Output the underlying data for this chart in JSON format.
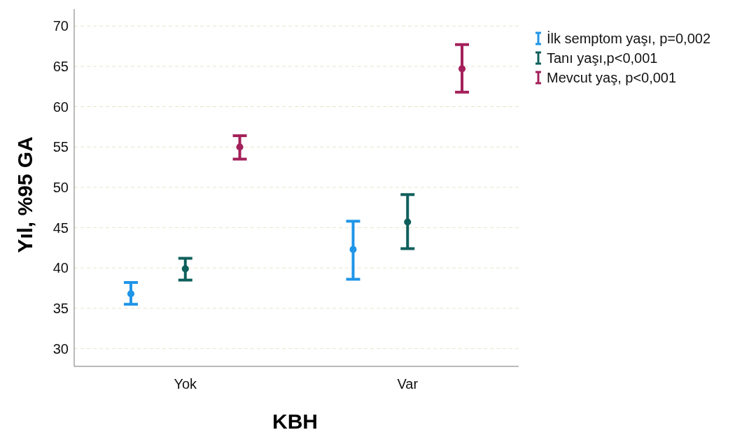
{
  "chart_data": {
    "type": "scatter",
    "xlabel": "KBH",
    "ylabel": "Yıl, %95 GA",
    "categories": [
      "Yok",
      "Var"
    ],
    "series": [
      {
        "name": "İlk semptom yaşı, p=0,002",
        "color": "#1f95e8",
        "values": [
          36.8,
          42.3
        ],
        "errors": [
          [
            35.5,
            38.2
          ],
          [
            38.6,
            45.8
          ]
        ]
      },
      {
        "name": "Tanı yaşı,p<0,001",
        "color": "#0f5f5c",
        "values": [
          39.9,
          45.7
        ],
        "errors": [
          [
            38.5,
            41.2
          ],
          [
            42.4,
            49.1
          ]
        ]
      },
      {
        "name": "Mevcut yaş, p<0,001",
        "color": "#a3205a",
        "values": [
          55.0,
          64.7
        ],
        "errors": [
          [
            53.5,
            56.4
          ],
          [
            61.8,
            67.7
          ]
        ]
      }
    ],
    "ylim": [
      27.8,
      72.1
    ],
    "yticks": [
      30,
      35,
      40,
      45,
      50,
      55,
      60,
      65,
      70
    ],
    "grid": "y",
    "legend": "top right",
    "marker": "circle"
  }
}
